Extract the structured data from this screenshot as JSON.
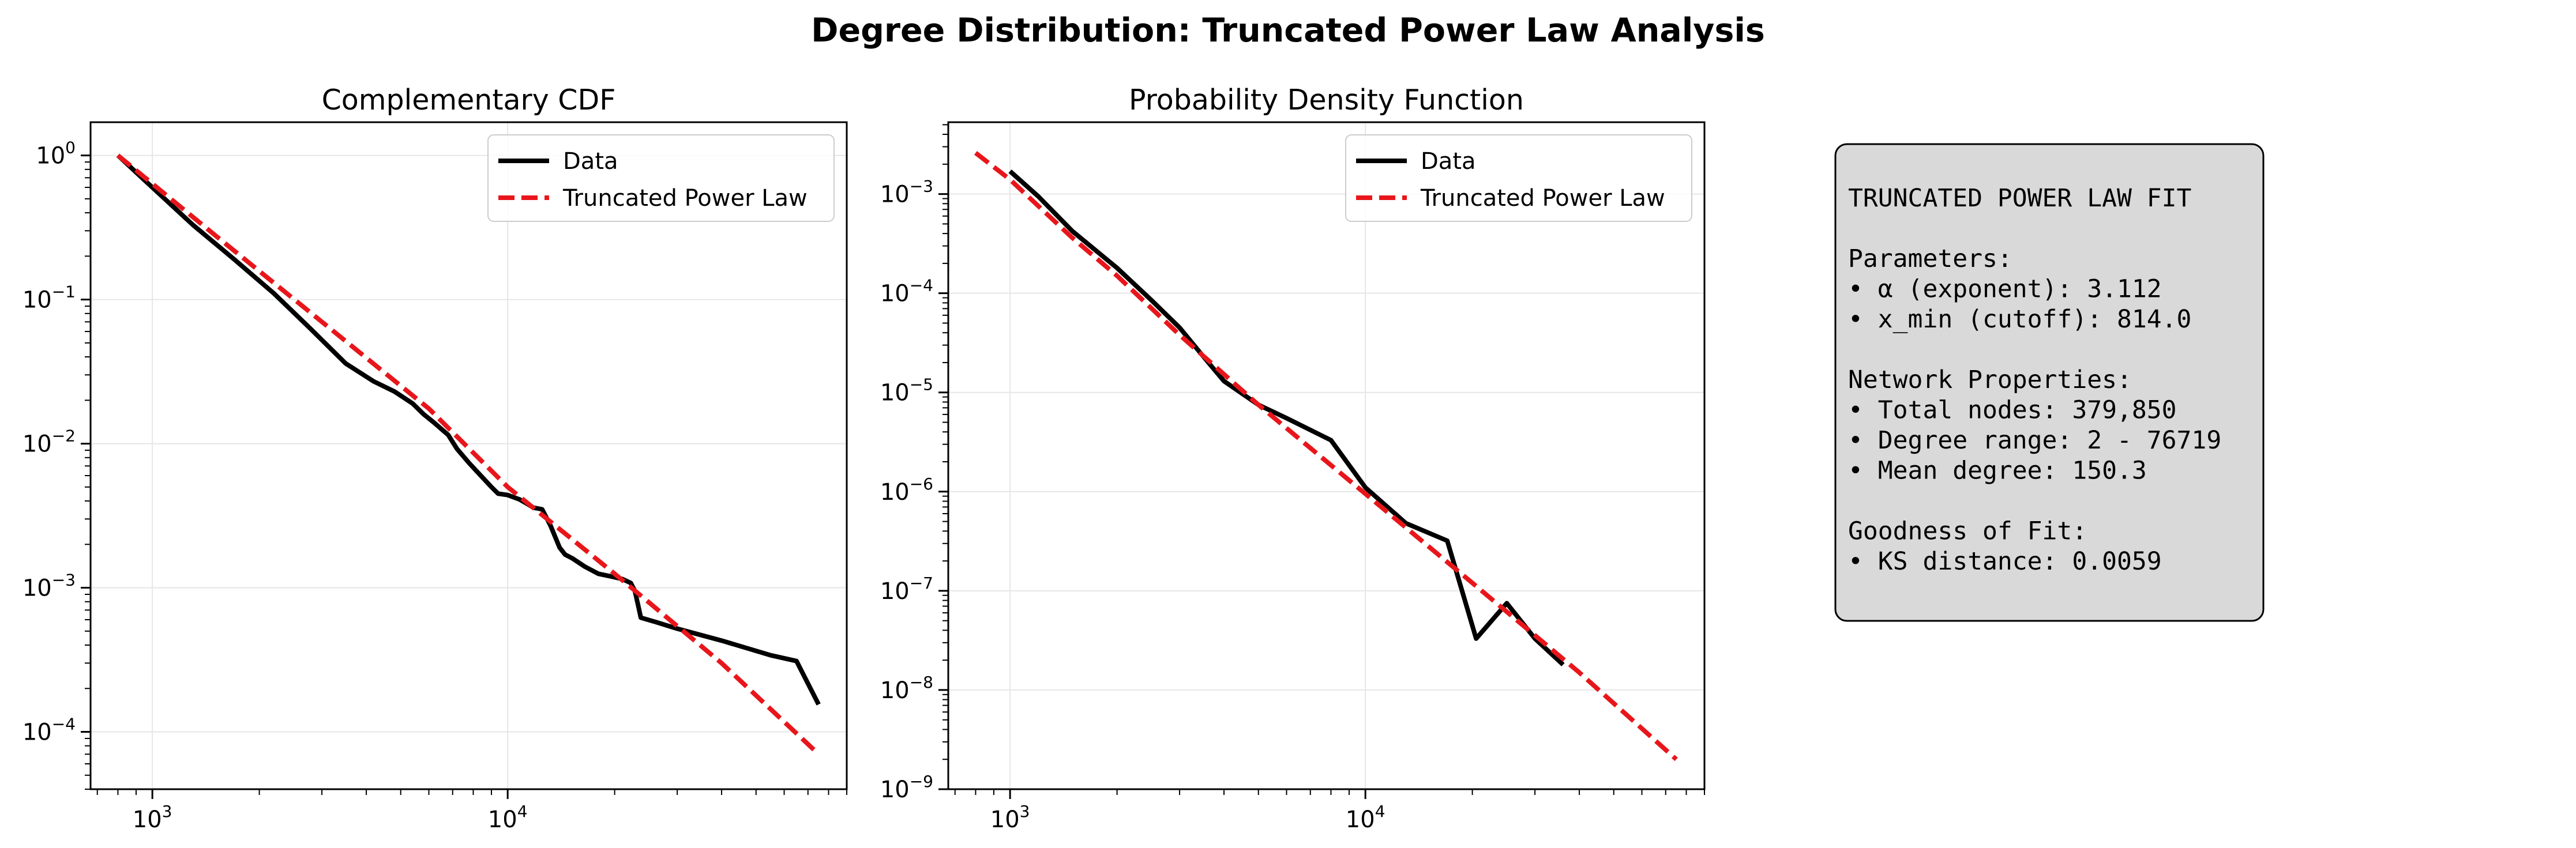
{
  "title": "Degree Distribution: Truncated Power Law Analysis",
  "colors": {
    "data": "#000000",
    "fit": "#e8161b",
    "grid": "#e6e6e6",
    "info_box_bg": "#d9d9d9"
  },
  "chart_data": [
    {
      "type": "line",
      "title": "Complementary CDF",
      "xlabel": "",
      "ylabel": "",
      "xscale": "log",
      "yscale": "log",
      "xlim": [
        670,
        90000
      ],
      "ylim": [
        4e-05,
        1.7
      ],
      "grid": true,
      "legend": "top-right",
      "x_ticks": [
        {
          "base": "10",
          "exp": "3",
          "value": 1000
        },
        {
          "base": "10",
          "exp": "4",
          "value": 10000
        }
      ],
      "y_ticks": [
        {
          "base": "10",
          "exp": "0",
          "value": 1
        },
        {
          "base": "10",
          "exp": "−1",
          "value": 0.1
        },
        {
          "base": "10",
          "exp": "−2",
          "value": 0.01
        },
        {
          "base": "10",
          "exp": "−3",
          "value": 0.001
        },
        {
          "base": "10",
          "exp": "−4",
          "value": 0.0001
        }
      ],
      "series": [
        {
          "name": "Data",
          "style": "solid",
          "x": [
            800,
            1000,
            1300,
            1700,
            2200,
            2800,
            3500,
            4200,
            4800,
            5400,
            5800,
            6200,
            6800,
            7200,
            7800,
            8400,
            9000,
            9400,
            10000,
            10800,
            11400,
            11800,
            12500,
            13200,
            14000,
            14500,
            15200,
            16500,
            18000,
            19500,
            21000,
            22200,
            22800,
            23300,
            23700,
            26000,
            30000,
            40000,
            55000,
            65000,
            75000
          ],
          "y": [
            1.0,
            0.6,
            0.33,
            0.19,
            0.11,
            0.062,
            0.036,
            0.027,
            0.023,
            0.019,
            0.016,
            0.014,
            0.0115,
            0.0092,
            0.0073,
            0.006,
            0.005,
            0.0045,
            0.0044,
            0.0041,
            0.0038,
            0.0036,
            0.0035,
            0.0027,
            0.0019,
            0.0017,
            0.0016,
            0.0014,
            0.00125,
            0.0012,
            0.00115,
            0.00108,
            0.00095,
            0.00075,
            0.00062,
            0.00058,
            0.00052,
            0.00043,
            0.00034,
            0.00031,
            0.000155
          ]
        },
        {
          "name": "Truncated Power Law",
          "style": "dashed",
          "x": [
            800,
            1500,
            3000,
            6000,
            10000,
            20000,
            40000,
            75000
          ],
          "y": [
            1.0,
            0.28,
            0.07,
            0.0175,
            0.005,
            0.00125,
            0.0003,
            7e-05
          ]
        }
      ]
    },
    {
      "type": "line",
      "title": "Probability Density Function",
      "xlabel": "",
      "ylabel": "",
      "xscale": "log",
      "yscale": "log",
      "xlim": [
        670,
        90000
      ],
      "ylim": [
        1e-09,
        0.0053
      ],
      "grid": true,
      "legend": "top-right",
      "x_ticks": [
        {
          "base": "10",
          "exp": "3",
          "value": 1000
        },
        {
          "base": "10",
          "exp": "4",
          "value": 10000
        }
      ],
      "y_ticks": [
        {
          "base": "10",
          "exp": "−3",
          "value": 0.001
        },
        {
          "base": "10",
          "exp": "−4",
          "value": 0.0001
        },
        {
          "base": "10",
          "exp": "−5",
          "value": 1e-05
        },
        {
          "base": "10",
          "exp": "−6",
          "value": 1e-06
        },
        {
          "base": "10",
          "exp": "−7",
          "value": 1e-07
        },
        {
          "base": "10",
          "exp": "−8",
          "value": 1e-08
        },
        {
          "base": "10",
          "exp": "−9",
          "value": 1e-09
        }
      ],
      "series": [
        {
          "name": "Data",
          "style": "solid",
          "x": [
            1000,
            1200,
            1500,
            2000,
            2500,
            3000,
            3500,
            4000,
            5000,
            6000,
            8000,
            10000,
            13000,
            17000,
            20500,
            25000,
            30000,
            36000
          ],
          "y": [
            0.0017,
            0.00095,
            0.00042,
            0.00018,
            8.5e-05,
            4.5e-05,
            2.3e-05,
            1.3e-05,
            7.5e-06,
            5.5e-06,
            3.3e-06,
            1.1e-06,
            4.8e-07,
            3.2e-07,
            3.3e-08,
            7.5e-08,
            3.3e-08,
            1.8e-08
          ]
        },
        {
          "name": "Truncated Power Law",
          "style": "dashed",
          "x": [
            800,
            1000,
            1500,
            2000,
            3000,
            5000,
            10000,
            20000,
            40000,
            75000
          ],
          "y": [
            0.0026,
            0.0014,
            0.00036,
            0.00015,
            3.8e-05,
            7.5e-06,
            9.5e-07,
            1.2e-07,
            1.5e-08,
            2e-09
          ]
        }
      ]
    }
  ],
  "info_box": {
    "lines": [
      "TRUNCATED POWER LAW FIT",
      "",
      "Parameters:",
      "• α (exponent): 3.112",
      "• x_min (cutoff): 814.0",
      "",
      "Network Properties:",
      "• Total nodes: 379,850",
      "• Degree range: 2 - 76719",
      "• Mean degree: 150.3",
      "",
      "Goodness of Fit:",
      "• KS distance: 0.0059"
    ]
  }
}
